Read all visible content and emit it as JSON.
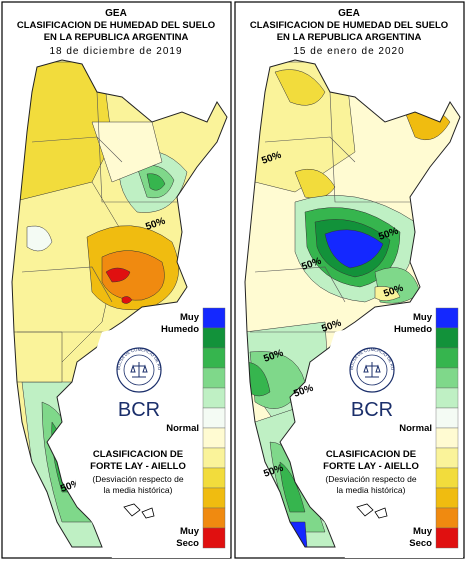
{
  "legend_colors": [
    "#1428ff",
    "#12923a",
    "#36b54e",
    "#7fd88a",
    "#bff0c4",
    "#f4fbf4",
    "#fffbd2",
    "#faf39a",
    "#f2dc3c",
    "#f0bc10",
    "#f08a10",
    "#e01010"
  ],
  "panels": [
    {
      "header": {
        "org": "GEA",
        "title_1": "CLASIFICACION DE HUMEDAD DEL SUELO",
        "title_2": "EN LA REPUBLICA ARGENTINA",
        "date": "18 de diciembre de 2019"
      },
      "contour_labels": [
        "50%",
        "50%"
      ],
      "legend": {
        "wet_1": "Muy",
        "wet_2": "Humedo",
        "normal": "Normal",
        "dry_1": "Muy",
        "dry_2": "Seco"
      },
      "logo": {
        "ring": "BOLSA DE COMERCIO DE ROSARIO",
        "name": "BCR"
      },
      "method": {
        "line_1": "CLASIFICACION DE",
        "line_2": "FORTE LAY - AIELLO",
        "line_3": "(Desviación respecto de",
        "line_4": "la media histórica)"
      }
    },
    {
      "header": {
        "org": "GEA",
        "title_1": "CLASIFICACION DE HUMEDAD DEL SUELO",
        "title_2": "EN LA REPUBLICA ARGENTINA",
        "date": "15 de enero de 2020"
      },
      "contour_labels": [
        "50%",
        "50%",
        "50%",
        "50%",
        "50%",
        "50%",
        "50%",
        "50%"
      ],
      "legend": {
        "wet_1": "Muy",
        "wet_2": "Humedo",
        "normal": "Normal",
        "dry_1": "Muy",
        "dry_2": "Seco"
      },
      "logo": {
        "ring": "BOLSA DE COMERCIO DE ROSARIO",
        "name": "BCR"
      },
      "method": {
        "line_1": "CLASIFICACION DE",
        "line_2": "FORTE LAY - AIELLO",
        "line_3": "(Desviación respecto de",
        "line_4": "la media histórica)"
      }
    }
  ]
}
